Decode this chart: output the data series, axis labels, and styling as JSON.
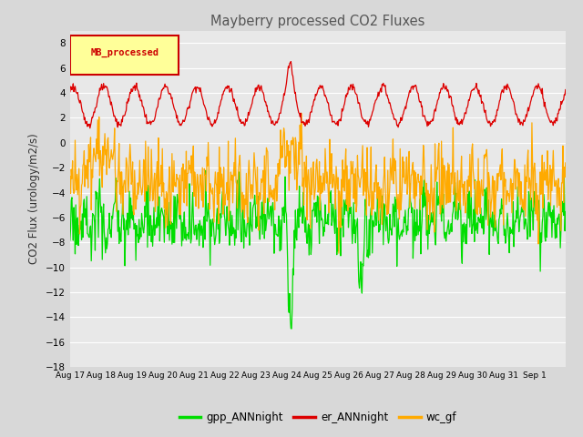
{
  "title": "Mayberry processed CO2 Fluxes",
  "ylabel": "CO2 Flux (urology/m2/s)",
  "ylim": [
    -18,
    9
  ],
  "yticks": [
    -18,
    -16,
    -14,
    -12,
    -10,
    -8,
    -6,
    -4,
    -2,
    0,
    2,
    4,
    6,
    8
  ],
  "xtick_labels": [
    "Aug 17",
    "Aug 18",
    "Aug 19",
    "Aug 20",
    "Aug 21",
    "Aug 22",
    "Aug 23",
    "Aug 24",
    "Aug 25",
    "Aug 26",
    "Aug 27",
    "Aug 28",
    "Aug 29",
    "Aug 30",
    "Aug 31",
    "Sep 1"
  ],
  "legend_label": "MB_processed",
  "legend_text_color": "#cc0000",
  "legend_box_edge_color": "#cc0000",
  "legend_box_color": "#ffff99",
  "colors": {
    "gpp": "#00dd00",
    "er": "#dd0000",
    "wc": "#ffaa00"
  },
  "background_color": "#d8d8d8",
  "plot_bg_color": "#e8e8e8",
  "grid_color": "#ffffff",
  "title_color": "#555555"
}
